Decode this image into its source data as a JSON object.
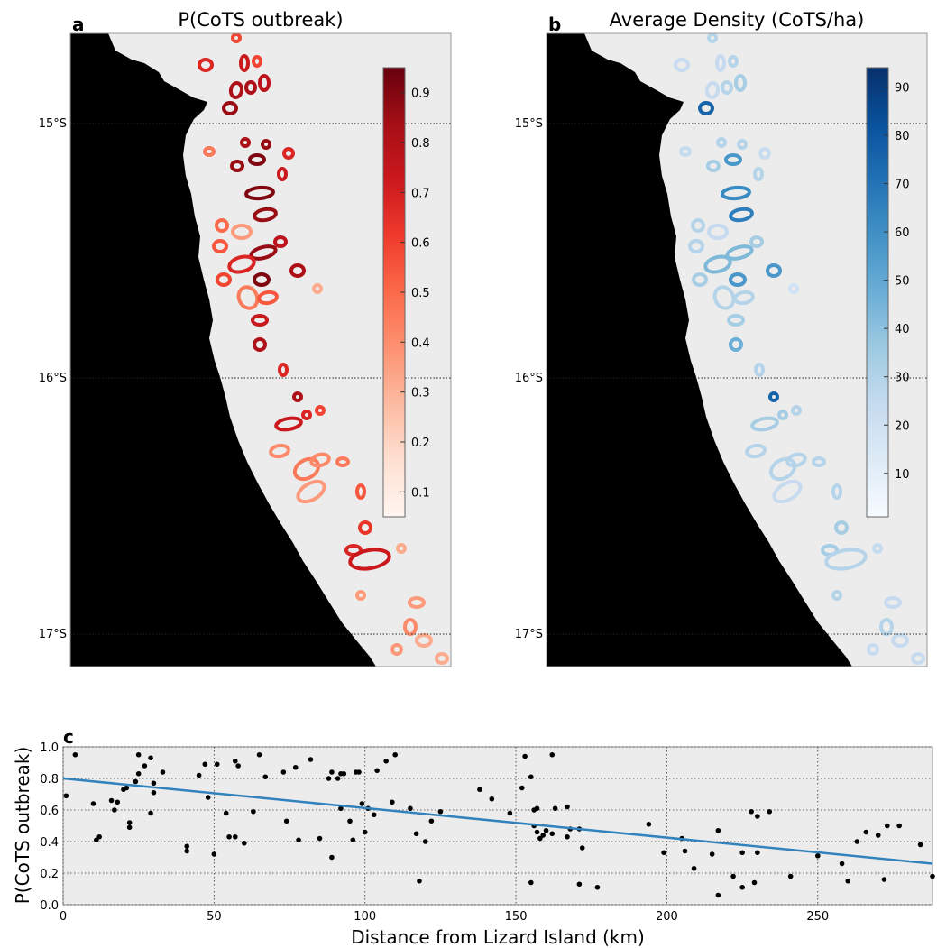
{
  "chart_data": [
    {
      "type": "map",
      "panel_label": "a",
      "title": "P(CoTS outbreak)",
      "lat_ticks": [
        "15°S",
        "16°S",
        "17°S"
      ],
      "colorbar": {
        "colormap": "Reds",
        "min": 0.05,
        "max": 0.95,
        "ticks": [
          "0.1",
          "0.2",
          "0.3",
          "0.4",
          "0.5",
          "0.6",
          "0.7",
          "0.8",
          "0.9"
        ]
      },
      "colors": {
        "background": "#ececec",
        "land": "#000000",
        "scale": [
          "#fff5f0",
          "#fee0d2",
          "#fcbba1",
          "#fc9272",
          "#fb6a4a",
          "#ef3b2c",
          "#cb181d",
          "#a50f15",
          "#67000d"
        ]
      }
    },
    {
      "type": "map",
      "panel_label": "b",
      "title": "Average Density (CoTS/ha)",
      "lat_ticks": [
        "15°S",
        "16°S",
        "17°S"
      ],
      "colorbar": {
        "colormap": "Blues",
        "min": 1,
        "max": 94,
        "ticks": [
          "10",
          "20",
          "30",
          "40",
          "50",
          "60",
          "70",
          "80",
          "90"
        ]
      },
      "colors": {
        "background": "#ececec",
        "land": "#000000",
        "scale": [
          "#f7fbff",
          "#deebf7",
          "#c6dbef",
          "#9ecae1",
          "#6baed6",
          "#4292c6",
          "#2171b5",
          "#08519c",
          "#08306b"
        ]
      }
    },
    {
      "type": "scatter",
      "panel_label": "c",
      "xlabel": "Distance from Lizard Island (km)",
      "ylabel": "P(CoTS outbreak)",
      "xlim": [
        0,
        288
      ],
      "ylim": [
        0,
        1.0
      ],
      "xticks": [
        "0",
        "50",
        "100",
        "150",
        "200",
        "250"
      ],
      "yticks": [
        "0.0",
        "0.2",
        "0.4",
        "0.6",
        "0.8",
        "1.0"
      ],
      "grid": true,
      "trend_line": {
        "x": [
          0,
          288
        ],
        "y": [
          0.8,
          0.26
        ],
        "color": "#3182bd"
      },
      "points": [
        [
          1,
          0.69
        ],
        [
          4,
          0.95
        ],
        [
          10,
          0.64
        ],
        [
          11,
          0.41
        ],
        [
          12,
          0.43
        ],
        [
          16,
          0.66
        ],
        [
          17,
          0.6
        ],
        [
          18,
          0.65
        ],
        [
          20,
          0.73
        ],
        [
          21,
          0.74
        ],
        [
          22,
          0.52
        ],
        [
          22,
          0.49
        ],
        [
          24,
          0.78
        ],
        [
          25,
          0.95
        ],
        [
          25,
          0.83
        ],
        [
          27,
          0.88
        ],
        [
          29,
          0.58
        ],
        [
          29,
          0.93
        ],
        [
          30,
          0.77
        ],
        [
          30,
          0.71
        ],
        [
          33,
          0.84
        ],
        [
          41,
          0.37
        ],
        [
          41,
          0.34
        ],
        [
          45,
          0.82
        ],
        [
          47,
          0.89
        ],
        [
          48,
          0.68
        ],
        [
          50,
          0.32
        ],
        [
          51,
          0.89
        ],
        [
          54,
          0.58
        ],
        [
          55,
          0.43
        ],
        [
          57,
          0.43
        ],
        [
          57,
          0.91
        ],
        [
          58,
          0.88
        ],
        [
          60,
          0.39
        ],
        [
          63,
          0.59
        ],
        [
          65,
          0.95
        ],
        [
          67,
          0.81
        ],
        [
          73,
          0.84
        ],
        [
          74,
          0.53
        ],
        [
          77,
          0.87
        ],
        [
          78,
          0.41
        ],
        [
          82,
          0.92
        ],
        [
          85,
          0.42
        ],
        [
          88,
          0.8
        ],
        [
          89,
          0.84
        ],
        [
          89,
          0.3
        ],
        [
          91,
          0.8
        ],
        [
          92,
          0.83
        ],
        [
          92,
          0.61
        ],
        [
          93,
          0.83
        ],
        [
          95,
          0.53
        ],
        [
          96,
          0.41
        ],
        [
          97,
          0.84
        ],
        [
          98,
          0.84
        ],
        [
          99,
          0.64
        ],
        [
          100,
          0.46
        ],
        [
          101,
          0.61
        ],
        [
          103,
          0.57
        ],
        [
          104,
          0.85
        ],
        [
          107,
          0.91
        ],
        [
          109,
          0.65
        ],
        [
          110,
          0.95
        ],
        [
          115,
          0.61
        ],
        [
          117,
          0.45
        ],
        [
          118,
          0.15
        ],
        [
          120,
          0.4
        ],
        [
          122,
          0.53
        ],
        [
          125,
          0.59
        ],
        [
          138,
          0.73
        ],
        [
          142,
          0.67
        ],
        [
          148,
          0.58
        ],
        [
          152,
          0.74
        ],
        [
          153,
          0.94
        ],
        [
          155,
          0.14
        ],
        [
          155,
          0.81
        ],
        [
          156,
          0.5
        ],
        [
          156,
          0.6
        ],
        [
          157,
          0.61
        ],
        [
          157,
          0.46
        ],
        [
          158,
          0.42
        ],
        [
          159,
          0.44
        ],
        [
          160,
          0.47
        ],
        [
          162,
          0.95
        ],
        [
          162,
          0.45
        ],
        [
          163,
          0.61
        ],
        [
          167,
          0.62
        ],
        [
          167,
          0.43
        ],
        [
          168,
          0.48
        ],
        [
          171,
          0.13
        ],
        [
          171,
          0.48
        ],
        [
          172,
          0.36
        ],
        [
          177,
          0.11
        ],
        [
          194,
          0.51
        ],
        [
          199,
          0.33
        ],
        [
          205,
          0.42
        ],
        [
          206,
          0.34
        ],
        [
          209,
          0.23
        ],
        [
          215,
          0.32
        ],
        [
          217,
          0.47
        ],
        [
          217,
          0.06
        ],
        [
          222,
          0.18
        ],
        [
          225,
          0.33
        ],
        [
          225,
          0.11
        ],
        [
          228,
          0.59
        ],
        [
          229,
          0.14
        ],
        [
          230,
          0.33
        ],
        [
          230,
          0.56
        ],
        [
          234,
          0.59
        ],
        [
          241,
          0.18
        ],
        [
          250,
          0.31
        ],
        [
          258,
          0.26
        ],
        [
          260,
          0.15
        ],
        [
          263,
          0.4
        ],
        [
          266,
          0.46
        ],
        [
          270,
          0.44
        ],
        [
          272,
          0.16
        ],
        [
          273,
          0.5
        ],
        [
          277,
          0.5
        ],
        [
          284,
          0.38
        ],
        [
          288,
          0.18
        ]
      ]
    }
  ]
}
